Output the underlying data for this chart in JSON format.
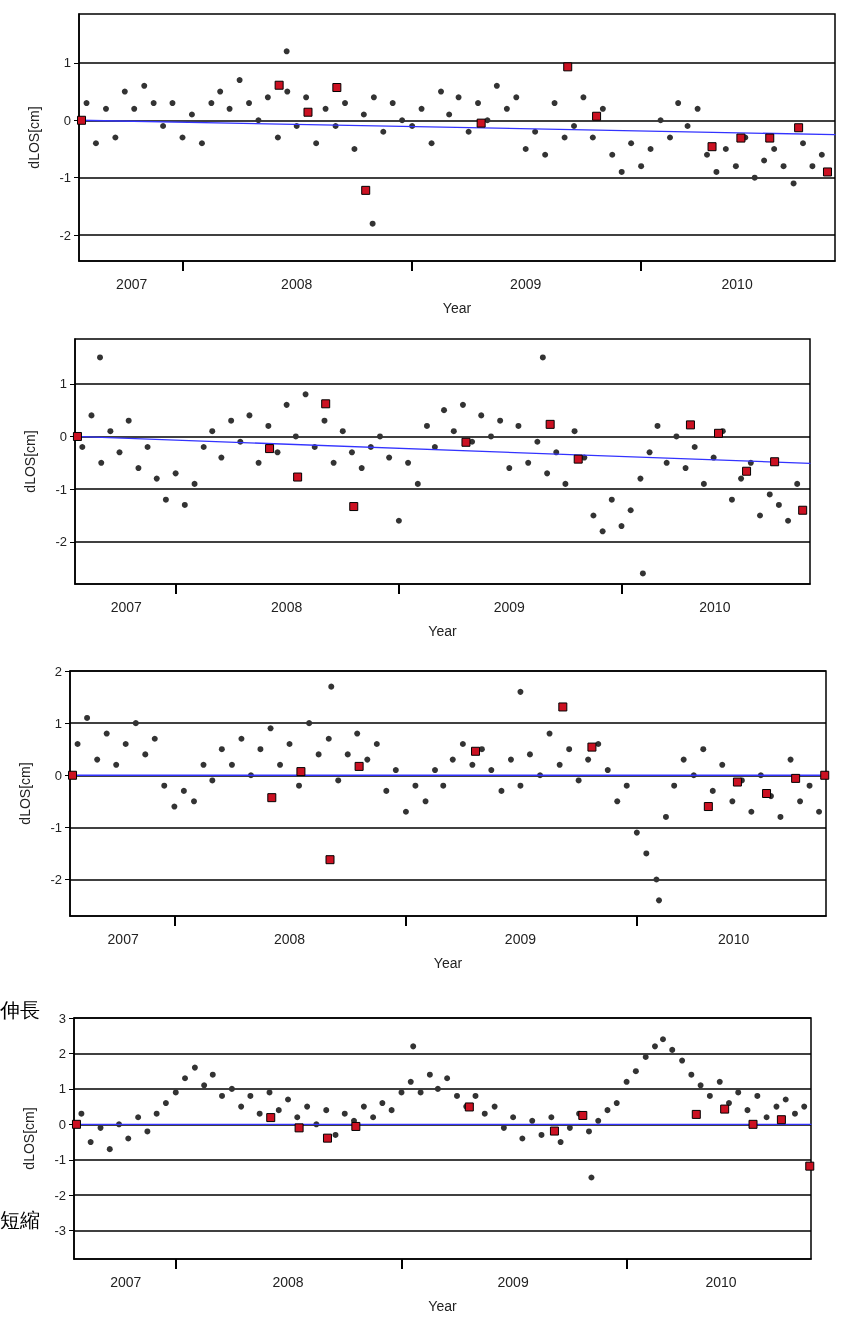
{
  "chart_data": [
    {
      "type": "scatter",
      "xlabel": "Year",
      "ylabel": "dLOS[cm]",
      "xlim": [
        "2007-07-20",
        "2010-11-06"
      ],
      "xticks": [
        {
          "value": "2008-01-01",
          "label": null
        },
        {
          "value": "2009-01-01",
          "label": null
        },
        {
          "value": "2010-01-01",
          "label": null
        },
        {
          "value": "2007-10-12",
          "label": "2007"
        },
        {
          "value": "2008-07-01",
          "label": "2008"
        },
        {
          "value": "2009-07-01",
          "label": "2009"
        },
        {
          "value": "2010-06-03",
          "label": "2010"
        }
      ],
      "ylim": [
        -2.45,
        1.85
      ],
      "yticks": [
        -2,
        -1,
        0,
        1
      ],
      "grid": "y",
      "x": [
        "2007-08-01",
        "2007-08-16",
        "2007-09-01",
        "2007-09-16",
        "2007-10-01",
        "2007-10-16",
        "2007-11-01",
        "2007-11-16",
        "2007-12-01",
        "2007-12-16",
        "2008-01-01",
        "2008-01-16",
        "2008-02-01",
        "2008-02-16",
        "2008-03-01",
        "2008-03-16",
        "2008-04-01",
        "2008-04-16",
        "2008-05-01",
        "2008-05-16",
        "2008-06-01",
        "2008-06-16",
        "2008-07-01",
        "2008-07-16",
        "2008-08-01",
        "2008-08-16",
        "2008-09-01",
        "2008-09-16",
        "2008-10-01",
        "2008-10-16",
        "2008-11-01",
        "2008-11-16",
        "2008-12-01",
        "2008-12-16",
        "2009-01-01",
        "2009-01-16",
        "2009-02-01",
        "2009-02-16",
        "2009-03-01",
        "2009-03-16",
        "2009-04-01",
        "2009-04-16",
        "2009-05-01",
        "2009-05-16",
        "2009-06-01",
        "2009-06-16",
        "2009-07-01",
        "2009-07-16",
        "2009-08-01",
        "2009-08-16",
        "2009-09-01",
        "2009-09-16",
        "2009-10-01",
        "2009-10-16",
        "2009-11-01",
        "2009-11-16",
        "2009-12-01",
        "2009-12-16",
        "2010-01-01",
        "2010-01-16",
        "2010-02-01",
        "2010-02-16",
        "2010-03-01",
        "2010-03-16",
        "2010-04-01",
        "2010-04-16",
        "2010-05-01",
        "2010-05-16",
        "2010-06-01",
        "2010-06-16",
        "2010-07-01",
        "2010-07-16",
        "2010-08-01",
        "2010-08-16",
        "2010-09-01",
        "2010-09-16",
        "2010-10-01",
        "2010-10-16"
      ],
      "series": [
        {
          "marker": "circle",
          "color": "#333333",
          "values": [
            0.3,
            -0.4,
            0.2,
            -0.3,
            0.5,
            0.2,
            0.6,
            0.3,
            -0.1,
            0.3,
            -0.3,
            0.1,
            -0.4,
            0.3,
            0.5,
            0.2,
            0.7,
            0.3,
            0.0,
            0.4,
            -0.3,
            0.5,
            -0.1,
            0.4,
            -0.4,
            0.2,
            -0.1,
            0.3,
            -0.5,
            0.1,
            0.4,
            -0.2,
            0.3,
            0.0,
            -0.1,
            0.2,
            -0.4,
            0.5,
            0.1,
            0.4,
            -0.2,
            0.3,
            0.0,
            0.6,
            0.2,
            0.4,
            -0.5,
            -0.2,
            -0.6,
            0.3,
            -0.3,
            -0.1,
            0.4,
            -0.3,
            0.2,
            -0.6,
            -0.9,
            -0.4,
            -0.8,
            -0.5,
            0.0,
            -0.3,
            0.3,
            -0.1,
            0.2,
            -0.6,
            -0.9,
            -0.5,
            -0.8,
            -0.3,
            -1.0,
            -0.7,
            -0.5,
            -0.8,
            -1.1,
            -0.4,
            -0.8,
            -0.6
          ]
        },
        {
          "marker": "circle",
          "color": "#333333",
          "x": [
            "2008-10-30",
            "2008-06-15"
          ],
          "values": [
            -1.8,
            1.2
          ]
        },
        {
          "marker": "square",
          "color": "#cc1122",
          "x": [
            "2007-07-24",
            "2008-06-03",
            "2008-07-19",
            "2008-09-03",
            "2008-10-19",
            "2009-04-21",
            "2009-09-06",
            "2009-10-22",
            "2010-04-24",
            "2010-06-09",
            "2010-07-25",
            "2010-09-09",
            "2010-10-25"
          ],
          "values": [
            0,
            0.61,
            0.14,
            0.57,
            -1.22,
            -0.05,
            0.93,
            0.07,
            -0.46,
            -0.31,
            -0.31,
            -0.13,
            -0.9
          ]
        },
        {
          "type": "line",
          "marker": "none",
          "color": "#3333ff",
          "x": [
            "2007-07-20",
            "2010-11-06"
          ],
          "values": [
            0,
            -0.25
          ]
        }
      ]
    },
    {
      "type": "scatter",
      "xlabel": "Year",
      "ylabel": "dLOS[cm]",
      "xlim": [
        "2007-07-20",
        "2010-11-06"
      ],
      "xticks": [
        {
          "value": "2008-01-01",
          "label": null
        },
        {
          "value": "2009-01-01",
          "label": null
        },
        {
          "value": "2010-01-01",
          "label": null
        },
        {
          "value": "2007-10-12",
          "label": "2007"
        },
        {
          "value": "2008-07-01",
          "label": "2008"
        },
        {
          "value": "2009-07-01",
          "label": "2009"
        },
        {
          "value": "2010-06-03",
          "label": "2010"
        }
      ],
      "ylim": [
        -2.8,
        1.85
      ],
      "yticks": [
        -2,
        -1,
        0,
        1
      ],
      "grid": "y",
      "x": [
        "2007-08-01",
        "2007-08-16",
        "2007-09-01",
        "2007-09-16",
        "2007-10-01",
        "2007-10-16",
        "2007-11-01",
        "2007-11-16",
        "2007-12-01",
        "2007-12-16",
        "2008-01-01",
        "2008-01-16",
        "2008-02-01",
        "2008-02-16",
        "2008-03-01",
        "2008-03-16",
        "2008-04-01",
        "2008-04-16",
        "2008-05-01",
        "2008-05-16",
        "2008-06-01",
        "2008-06-16",
        "2008-07-01",
        "2008-07-16",
        "2008-08-01",
        "2008-08-16",
        "2008-09-01",
        "2008-09-16",
        "2008-10-01",
        "2008-10-16",
        "2008-11-01",
        "2008-11-16",
        "2008-12-01",
        "2008-12-16",
        "2009-01-01",
        "2009-01-16",
        "2009-02-01",
        "2009-02-16",
        "2009-03-01",
        "2009-03-16",
        "2009-04-01",
        "2009-04-16",
        "2009-05-01",
        "2009-05-16",
        "2009-06-01",
        "2009-06-16",
        "2009-07-01",
        "2009-07-16",
        "2009-08-01",
        "2009-08-16",
        "2009-09-01",
        "2009-09-16",
        "2009-10-01",
        "2009-10-16",
        "2009-11-01",
        "2009-11-16",
        "2009-12-01",
        "2009-12-16",
        "2010-01-01",
        "2010-01-16",
        "2010-02-01",
        "2010-02-16",
        "2010-03-01",
        "2010-03-16",
        "2010-04-01",
        "2010-04-16",
        "2010-05-01",
        "2010-05-16",
        "2010-06-01",
        "2010-06-16",
        "2010-07-01",
        "2010-07-16",
        "2010-08-01",
        "2010-08-16",
        "2010-09-01",
        "2010-09-16",
        "2010-10-01",
        "2010-10-16"
      ],
      "series": [
        {
          "marker": "circle",
          "color": "#333333",
          "values": [
            -0.2,
            0.4,
            -0.5,
            0.1,
            -0.3,
            0.3,
            -0.6,
            -0.2,
            -0.8,
            -1.2,
            -0.7,
            -1.3,
            -0.9,
            -0.2,
            0.1,
            -0.4,
            0.3,
            -0.1,
            0.4,
            -0.5,
            0.2,
            -0.3,
            0.6,
            0.0,
            0.8,
            -0.2,
            0.3,
            -0.5,
            0.1,
            -0.3,
            -0.6,
            -0.2,
            0.0,
            -0.4,
            -1.6,
            -0.5,
            -0.9,
            0.2,
            -0.2,
            0.5,
            0.1,
            0.6,
            -0.1,
            0.4,
            0.0,
            0.3,
            -0.6,
            0.2,
            -0.5,
            -0.1,
            -0.7,
            -0.3,
            -0.9,
            0.1,
            -0.4,
            -1.5,
            -1.8,
            -1.2,
            -1.7,
            -1.4,
            -0.8,
            -0.3,
            0.2,
            -0.5,
            0.0,
            -0.6,
            -0.2,
            -0.9,
            -0.4,
            0.1,
            -1.2,
            -0.8,
            -0.5,
            -1.5,
            -1.1,
            -1.3,
            -1.6,
            -0.9
          ]
        },
        {
          "marker": "circle",
          "color": "#333333",
          "x": [
            "2007-08-30",
            "2009-08-25",
            "2010-02-05"
          ],
          "values": [
            1.5,
            1.5,
            -2.6
          ]
        },
        {
          "marker": "square",
          "color": "#cc1122",
          "x": [
            "2007-07-24",
            "2008-06-03",
            "2008-07-19",
            "2008-09-03",
            "2008-10-19",
            "2009-04-21",
            "2009-09-06",
            "2009-10-22",
            "2010-04-24",
            "2010-06-09",
            "2010-07-25",
            "2010-09-09",
            "2010-10-25"
          ],
          "values": [
            0,
            -0.23,
            -0.77,
            0.62,
            -1.33,
            -0.11,
            0.23,
            -0.43,
            0.22,
            0.06,
            -0.66,
            -0.48,
            -1.4
          ]
        },
        {
          "type": "line",
          "marker": "none",
          "color": "#3333ff",
          "x": [
            "2007-07-20",
            "2010-11-06"
          ],
          "values": [
            0,
            -0.51
          ]
        }
      ]
    },
    {
      "type": "scatter",
      "xlabel": "Year",
      "ylabel": "dLOS[cm]",
      "xlim": [
        "2007-07-20",
        "2010-10-27"
      ],
      "xticks": [
        {
          "value": "2008-01-01",
          "label": null
        },
        {
          "value": "2009-01-01",
          "label": null
        },
        {
          "value": "2010-01-01",
          "label": null
        },
        {
          "value": "2007-10-12",
          "label": "2007"
        },
        {
          "value": "2008-07-01",
          "label": "2008"
        },
        {
          "value": "2009-07-01",
          "label": "2009"
        },
        {
          "value": "2010-06-03",
          "label": "2010"
        }
      ],
      "ylim": [
        -2.7,
        2
      ],
      "yticks": [
        -2,
        -1,
        0,
        1,
        2
      ],
      "grid": "y",
      "x": [
        "2007-08-01",
        "2007-08-16",
        "2007-09-01",
        "2007-09-16",
        "2007-10-01",
        "2007-10-16",
        "2007-11-01",
        "2007-11-16",
        "2007-12-01",
        "2007-12-16",
        "2008-01-01",
        "2008-01-16",
        "2008-02-01",
        "2008-02-16",
        "2008-03-01",
        "2008-03-16",
        "2008-04-01",
        "2008-04-16",
        "2008-05-01",
        "2008-05-16",
        "2008-06-01",
        "2008-06-16",
        "2008-07-01",
        "2008-07-16",
        "2008-08-01",
        "2008-08-16",
        "2008-09-01",
        "2008-09-16",
        "2008-10-01",
        "2008-10-16",
        "2008-11-01",
        "2008-11-16",
        "2008-12-01",
        "2008-12-16",
        "2009-01-01",
        "2009-01-16",
        "2009-02-01",
        "2009-02-16",
        "2009-03-01",
        "2009-03-16",
        "2009-04-01",
        "2009-04-16",
        "2009-05-01",
        "2009-05-16",
        "2009-06-01",
        "2009-06-16",
        "2009-07-01",
        "2009-07-16",
        "2009-08-01",
        "2009-08-16",
        "2009-09-01",
        "2009-09-16",
        "2009-10-01",
        "2009-10-16",
        "2009-11-01",
        "2009-11-16",
        "2009-12-01",
        "2009-12-16",
        "2010-01-01",
        "2010-01-16",
        "2010-02-01",
        "2010-02-16",
        "2010-03-01",
        "2010-03-16",
        "2010-04-01",
        "2010-04-16",
        "2010-05-01",
        "2010-05-16",
        "2010-06-01",
        "2010-06-16",
        "2010-07-01",
        "2010-07-16",
        "2010-08-01",
        "2010-08-16",
        "2010-09-01",
        "2010-09-16",
        "2010-10-01",
        "2010-10-16"
      ],
      "series": [
        {
          "marker": "circle",
          "color": "#333333",
          "values": [
            0.6,
            1.1,
            0.3,
            0.8,
            0.2,
            0.6,
            1.0,
            0.4,
            0.7,
            -0.2,
            -0.6,
            -0.3,
            -0.5,
            0.2,
            -0.1,
            0.5,
            0.2,
            0.7,
            0.0,
            0.5,
            0.9,
            0.2,
            0.6,
            -0.2,
            1.0,
            0.4,
            0.7,
            -0.1,
            0.4,
            0.8,
            0.3,
            0.6,
            -0.3,
            0.1,
            -0.7,
            -0.2,
            -0.5,
            0.1,
            -0.2,
            0.3,
            0.6,
            0.2,
            0.5,
            0.1,
            -0.3,
            0.3,
            -0.2,
            0.4,
            0.0,
            0.8,
            0.2,
            0.5,
            -0.1,
            0.3,
            0.6,
            0.1,
            -0.5,
            -0.2,
            -1.1,
            -1.5,
            -2.0,
            -0.8,
            -0.2,
            0.3,
            0.0,
            0.5,
            -0.3,
            0.2,
            -0.5,
            -0.1,
            -0.7,
            0.0,
            -0.4,
            -0.8,
            0.3,
            -0.5,
            -0.2,
            -0.7
          ]
        },
        {
          "marker": "circle",
          "color": "#333333",
          "x": [
            "2008-09-05",
            "2009-07-01",
            "2010-02-05"
          ],
          "values": [
            1.7,
            1.6,
            -2.4
          ]
        },
        {
          "marker": "square",
          "color": "#cc1122",
          "x": [
            "2007-07-24",
            "2008-06-03",
            "2008-07-19",
            "2008-09-03",
            "2008-10-19",
            "2009-04-21",
            "2009-09-06",
            "2009-10-22",
            "2010-04-24",
            "2010-06-09",
            "2010-07-25",
            "2010-09-09",
            "2010-10-25"
          ],
          "values": [
            0,
            -0.43,
            0.07,
            -1.62,
            0.17,
            0.46,
            1.31,
            0.54,
            -0.6,
            -0.13,
            -0.35,
            -0.06,
            0
          ]
        },
        {
          "type": "line",
          "marker": "none",
          "color": "#3333ff",
          "x": [
            "2007-07-20",
            "2010-10-27"
          ],
          "values": [
            0,
            0
          ]
        }
      ]
    },
    {
      "type": "scatter",
      "xlabel": "Year",
      "ylabel": "dLOS[cm]",
      "xlim": [
        "2007-07-20",
        "2010-10-27"
      ],
      "xticks": [
        {
          "value": "2008-01-01",
          "label": null
        },
        {
          "value": "2009-01-01",
          "label": null
        },
        {
          "value": "2010-01-01",
          "label": null
        },
        {
          "value": "2007-10-12",
          "label": "2007"
        },
        {
          "value": "2008-07-01",
          "label": "2008"
        },
        {
          "value": "2009-07-01",
          "label": "2009"
        },
        {
          "value": "2010-06-03",
          "label": "2010"
        }
      ],
      "ylim": [
        -3.8,
        3
      ],
      "yticks": [
        -3,
        -2,
        -1,
        0,
        1,
        2,
        3
      ],
      "grid": "y",
      "annotations": [
        "伸長",
        "短縮"
      ],
      "x": [
        "2007-08-01",
        "2007-08-16",
        "2007-09-01",
        "2007-09-16",
        "2007-10-01",
        "2007-10-16",
        "2007-11-01",
        "2007-11-16",
        "2007-12-01",
        "2007-12-16",
        "2008-01-01",
        "2008-01-16",
        "2008-02-01",
        "2008-02-16",
        "2008-03-01",
        "2008-03-16",
        "2008-04-01",
        "2008-04-16",
        "2008-05-01",
        "2008-05-16",
        "2008-06-01",
        "2008-06-16",
        "2008-07-01",
        "2008-07-16",
        "2008-08-01",
        "2008-08-16",
        "2008-09-01",
        "2008-09-16",
        "2008-10-01",
        "2008-10-16",
        "2008-11-01",
        "2008-11-16",
        "2008-12-01",
        "2008-12-16",
        "2009-01-01",
        "2009-01-16",
        "2009-02-01",
        "2009-02-16",
        "2009-03-01",
        "2009-03-16",
        "2009-04-01",
        "2009-04-16",
        "2009-05-01",
        "2009-05-16",
        "2009-06-01",
        "2009-06-16",
        "2009-07-01",
        "2009-07-16",
        "2009-08-01",
        "2009-08-16",
        "2009-09-01",
        "2009-09-16",
        "2009-10-01",
        "2009-10-16",
        "2009-11-01",
        "2009-11-16",
        "2009-12-01",
        "2009-12-16",
        "2010-01-01",
        "2010-01-16",
        "2010-02-01",
        "2010-02-16",
        "2010-03-01",
        "2010-03-16",
        "2010-04-01",
        "2010-04-16",
        "2010-05-01",
        "2010-05-16",
        "2010-06-01",
        "2010-06-16",
        "2010-07-01",
        "2010-07-16",
        "2010-08-01",
        "2010-08-16",
        "2010-09-01",
        "2010-09-16",
        "2010-10-01",
        "2010-10-16"
      ],
      "series": [
        {
          "marker": "circle",
          "color": "#333333",
          "values": [
            0.3,
            -0.5,
            -0.1,
            -0.7,
            0.0,
            -0.4,
            0.2,
            -0.2,
            0.3,
            0.6,
            0.9,
            1.3,
            1.6,
            1.1,
            1.4,
            0.8,
            1.0,
            0.5,
            0.8,
            0.3,
            0.9,
            0.4,
            0.7,
            0.2,
            0.5,
            0.0,
            0.4,
            -0.3,
            0.3,
            0.1,
            0.5,
            0.2,
            0.6,
            0.4,
            0.9,
            1.2,
            0.9,
            1.4,
            1.0,
            1.3,
            0.8,
            0.5,
            0.8,
            0.3,
            0.5,
            -0.1,
            0.2,
            -0.4,
            0.1,
            -0.3,
            0.2,
            -0.5,
            -0.1,
            0.3,
            -0.2,
            0.1,
            0.4,
            0.6,
            1.2,
            1.5,
            1.9,
            2.2,
            2.4,
            2.1,
            1.8,
            1.4,
            1.1,
            0.8,
            1.2,
            0.6,
            0.9,
            0.4,
            0.8,
            0.2,
            0.5,
            0.7,
            0.3,
            0.5
          ]
        },
        {
          "marker": "circle",
          "color": "#333333",
          "x": [
            "2009-01-20",
            "2009-11-05"
          ],
          "values": [
            2.2,
            -1.5
          ]
        },
        {
          "marker": "square",
          "color": "#cc1122",
          "x": [
            "2007-07-24",
            "2008-06-03",
            "2008-07-19",
            "2008-09-03",
            "2008-10-19",
            "2009-04-21",
            "2009-09-06",
            "2009-10-22",
            "2010-04-24",
            "2010-06-09",
            "2010-07-25",
            "2010-09-09",
            "2010-10-25"
          ],
          "values": [
            0,
            0.19,
            -0.1,
            -0.39,
            -0.06,
            0.49,
            -0.19,
            0.25,
            0.28,
            0.43,
            0,
            0.13,
            -1.18
          ]
        },
        {
          "type": "line",
          "marker": "none",
          "color": "#3333ff",
          "x": [
            "2007-07-20",
            "2010-10-27"
          ],
          "values": [
            0,
            0
          ]
        }
      ]
    }
  ]
}
